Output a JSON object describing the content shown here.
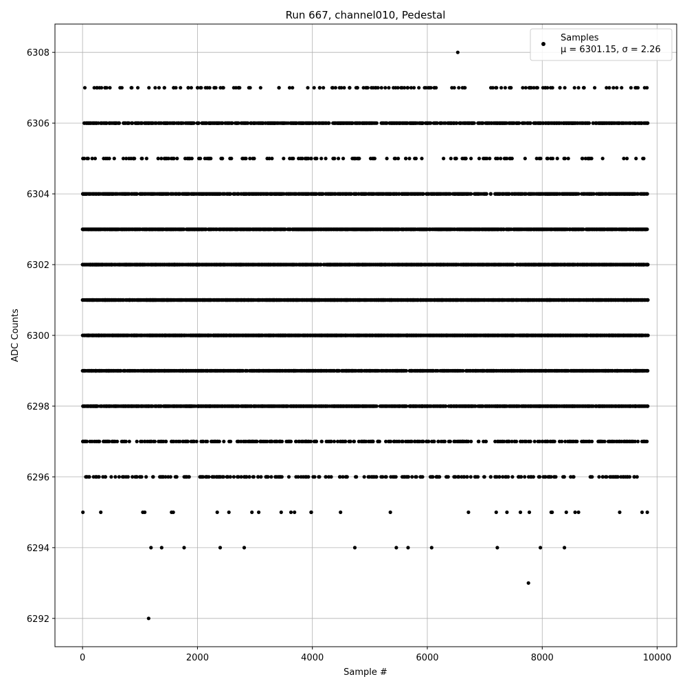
{
  "chart_data": {
    "type": "scatter",
    "title": "Run 667, channel010, Pedestal",
    "xlabel": "Sample #",
    "ylabel": "ADC Counts",
    "xlim": [
      -480,
      10340
    ],
    "ylim": [
      6291.2,
      6308.8
    ],
    "xticks": [
      0,
      2000,
      4000,
      6000,
      8000,
      10000
    ],
    "xtick_labels": [
      "0",
      "2000",
      "4000",
      "6000",
      "8000",
      "10000"
    ],
    "yticks": [
      6292,
      6294,
      6296,
      6298,
      6300,
      6302,
      6304,
      6306,
      6308
    ],
    "ytick_labels": [
      "6292",
      "6294",
      "6296",
      "6298",
      "6300",
      "6302",
      "6304",
      "6306",
      "6308"
    ],
    "grid": true,
    "legend_position": "top-right",
    "marker_color": "#000000",
    "series": [
      {
        "name": "Samples",
        "legend_line2": "μ = 6301.15, σ = 2.26",
        "description": "~9840 pedestal samples taken at sample indices 0-9840; integer ADC values between 6292 and 6308, densest at 6300-6302",
        "levels": [
          {
            "y": 6307,
            "approx_count": 150
          },
          {
            "y": 6306,
            "approx_count": 800
          },
          {
            "y": 6305,
            "approx_count": 160
          },
          {
            "y": 6304,
            "approx_count": 1100
          },
          {
            "y": 6303,
            "approx_count": 1450
          },
          {
            "y": 6302,
            "approx_count": 1750
          },
          {
            "y": 6301,
            "approx_count": 1900
          },
          {
            "y": 6300,
            "approx_count": 1800
          },
          {
            "y": 6299,
            "approx_count": 1200
          },
          {
            "y": 6298,
            "approx_count": 1250
          },
          {
            "y": 6297,
            "approx_count": 420
          },
          {
            "y": 6296,
            "approx_count": 260
          },
          {
            "y": 6295,
            "approx_count": 30
          },
          {
            "y": 6294,
            "approx_count": 12
          }
        ],
        "outliers": [
          {
            "x": 6530,
            "y": 6308
          },
          {
            "x": 7760,
            "y": 6293
          },
          {
            "x": 1150,
            "y": 6292
          }
        ],
        "x_range": [
          0,
          9840
        ]
      }
    ]
  }
}
